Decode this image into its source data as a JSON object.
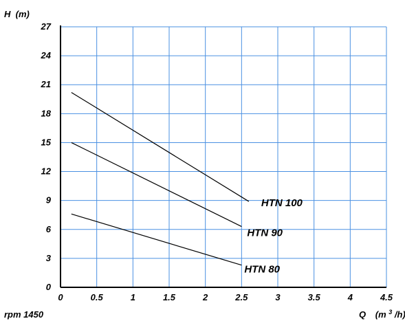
{
  "chart_data": {
    "type": "line",
    "xlabel": "Q",
    "xunit_prefix": "(m",
    "xunit_sup": "3",
    "xunit_suffix": "/h)",
    "ylabel": "H  (m)",
    "xlim": [
      0,
      4.5
    ],
    "ylim": [
      0,
      27
    ],
    "x_ticks": [
      0,
      0.5,
      1,
      1.5,
      2,
      2.5,
      3,
      3.5,
      4,
      4.5
    ],
    "x_tick_labels": [
      "0",
      "0.5",
      "1",
      "1.5",
      "2",
      "2.5",
      "3",
      "3.5",
      "4",
      "4.5"
    ],
    "y_ticks": [
      0,
      3,
      6,
      9,
      12,
      15,
      18,
      21,
      24,
      27
    ],
    "y_tick_labels": [
      "0",
      "3",
      "6",
      "9",
      "12",
      "15",
      "18",
      "21",
      "24",
      "27"
    ],
    "grid": true,
    "series": [
      {
        "name": "HTN 100",
        "x": [
          0.15,
          2.6
        ],
        "y": [
          20.2,
          8.9
        ]
      },
      {
        "name": "HTN 90",
        "x": [
          0.15,
          2.5
        ],
        "y": [
          15.0,
          6.3
        ]
      },
      {
        "name": "HTN 80",
        "x": [
          0.15,
          2.5
        ],
        "y": [
          7.6,
          2.3
        ]
      }
    ],
    "note": "rpm 1450"
  },
  "colors": {
    "grid": "#4a90e2",
    "axis": "#000000",
    "line": "#000000"
  }
}
